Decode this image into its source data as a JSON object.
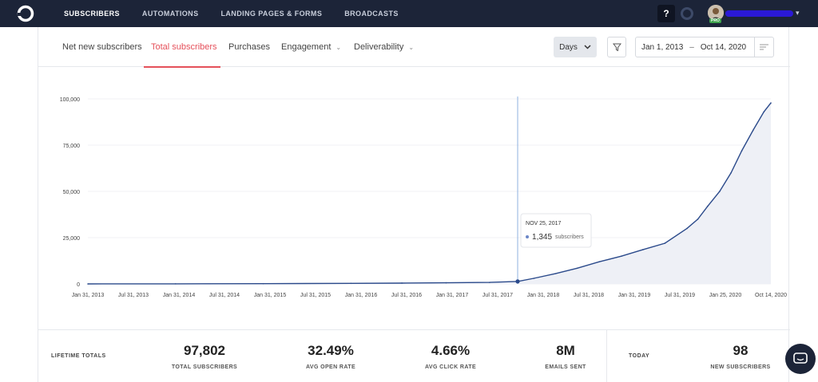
{
  "nav": {
    "items": [
      "SUBSCRIBERS",
      "AUTOMATIONS",
      "LANDING PAGES & FORMS",
      "BROADCASTS"
    ],
    "active": "SUBSCRIBERS",
    "help_label": "?",
    "pro_label": "PRO"
  },
  "tabs": [
    "Net new subscribers",
    "Total subscribers",
    "Purchases",
    "Engagement",
    "Deliverability"
  ],
  "active_tab": "Total subscribers",
  "controls": {
    "granularity": "Days",
    "date_from": "Jan 1, 2013",
    "date_separator": "–",
    "date_to": "Oct 14, 2020"
  },
  "chart_data": {
    "type": "area",
    "ylim": [
      0,
      100000
    ],
    "yticks": [
      0,
      25000,
      50000,
      75000,
      100000
    ],
    "ytick_labels": [
      "0",
      "25,000",
      "50,000",
      "75,000",
      "100,000"
    ],
    "xtick_labels": [
      "Jan 31, 2013",
      "Jul 31, 2013",
      "Jan 31, 2014",
      "Jul 31, 2014",
      "Jan 31, 2015",
      "Jul 31, 2015",
      "Jan 31, 2016",
      "Jul 31, 2016",
      "Jan 31, 2017",
      "Jul 31, 2017",
      "Jan 31, 2018",
      "Jul 31, 2018",
      "Jan 31, 2019",
      "Jul 31, 2019",
      "Jan 25, 2020",
      "Oct 14, 2020"
    ],
    "x": [
      "2013-01-01",
      "2014-01-01",
      "2015-01-01",
      "2016-01-01",
      "2016-07-31",
      "2017-01-31",
      "2017-07-31",
      "2017-11-25",
      "2018-01-31",
      "2018-04-30",
      "2018-07-31",
      "2018-10-31",
      "2019-01-31",
      "2019-04-30",
      "2019-07-31",
      "2019-10-31",
      "2019-12-15",
      "2020-01-25",
      "2020-03-15",
      "2020-05-01",
      "2020-06-15",
      "2020-08-01",
      "2020-09-15",
      "2020-10-14"
    ],
    "values": [
      0,
      50,
      150,
      300,
      450,
      600,
      800,
      1345,
      3000,
      5500,
      8500,
      12000,
      15000,
      18500,
      22000,
      30000,
      35000,
      42000,
      50000,
      60000,
      72000,
      83000,
      93000,
      97802
    ],
    "tooltip": {
      "date": "NOV 25, 2017",
      "value": "1,345",
      "unit": "subscribers"
    },
    "line_color": "#2b4a8b",
    "fill_color": "#eef0f6",
    "grid": true
  },
  "totals": {
    "lifetime_label": "LIFETIME TOTALS",
    "stats": [
      {
        "value": "97,802",
        "label": "TOTAL SUBSCRIBERS"
      },
      {
        "value": "32.49%",
        "label": "AVG OPEN RATE"
      },
      {
        "value": "4.66%",
        "label": "AVG CLICK RATE"
      },
      {
        "value": "8M",
        "label": "EMAILS SENT"
      }
    ],
    "today_label": "TODAY",
    "today_stat": {
      "value": "98",
      "label": "NEW SUBSCRIBERS"
    }
  }
}
